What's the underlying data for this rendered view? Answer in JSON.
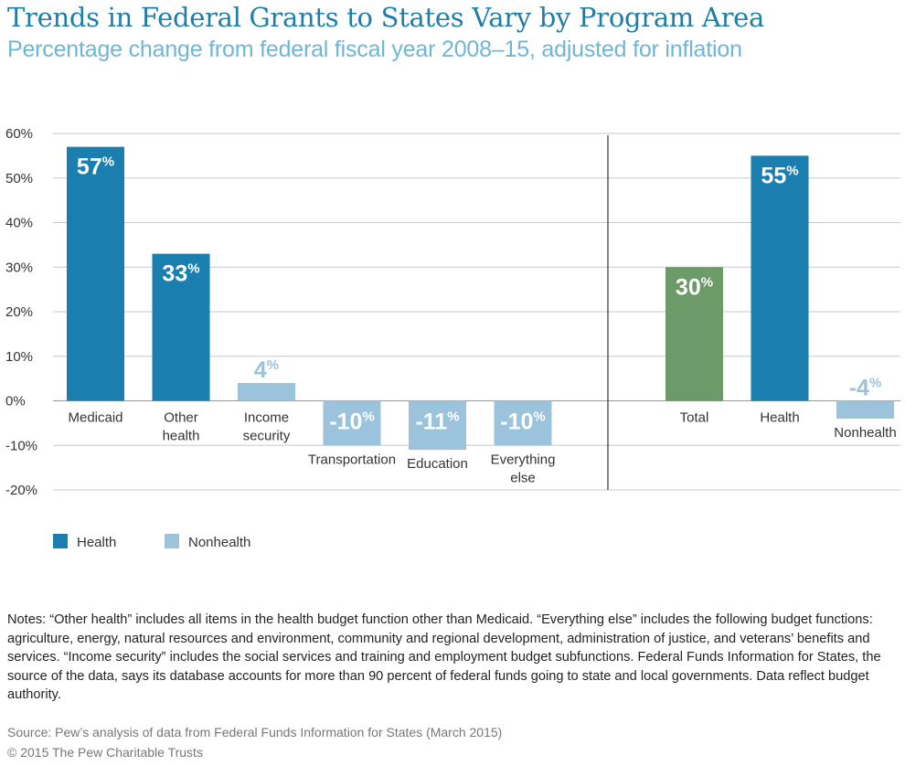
{
  "title": "Trends in Federal Grants to States Vary by Program Area",
  "subtitle": "Percentage change from federal fiscal year 2008–15, adjusted for inflation",
  "legend": {
    "health": "Health",
    "nonhealth": "Nonhealth"
  },
  "colors": {
    "health": "#1a7fae",
    "nonhealth": "#9cc3dc",
    "total": "#6c9a68",
    "grid": "#c8c8c8",
    "axis": "#333333"
  },
  "notes": "Notes: “Other health” includes all items in the health budget function other than Medicaid. “Everything else” includes the following budget functions: agriculture, energy, natural resources and environment, community and regional development, administration of justice, and veterans’ benefits and services. “Income security” includes the social services and training and employment budget subfunctions. Federal Funds Information for States, the source of the data, says its database accounts for more than 90 percent of federal funds going to state and local governments. Data reflect budget authority.",
  "source": "Source: Pew’s analysis of data from Federal Funds Information for States (March 2015)",
  "copyright": "© 2015 The Pew Charitable Trusts",
  "chart_data": {
    "type": "bar",
    "ylim": [
      -20,
      60
    ],
    "yticks": [
      60,
      50,
      40,
      30,
      20,
      10,
      0,
      -10,
      -20
    ],
    "ytick_labels": [
      "60%",
      "50%",
      "40%",
      "30%",
      "20%",
      "10%",
      "0%",
      "-10%",
      "-20%"
    ],
    "grid": true,
    "legend_position": "bottom-left",
    "groups": [
      {
        "name": "",
        "bars": [
          {
            "label": [
              "Medicaid"
            ],
            "value": 57,
            "category": "health"
          },
          {
            "label": [
              "Other",
              "health"
            ],
            "value": 33,
            "category": "health"
          },
          {
            "label": [
              "Income",
              "security"
            ],
            "value": 4,
            "category": "nonhealth"
          },
          {
            "label": [
              "Transportation"
            ],
            "value": -10,
            "category": "nonhealth"
          },
          {
            "label": [
              "Education"
            ],
            "value": -11,
            "category": "nonhealth"
          },
          {
            "label": [
              "Everything",
              "else"
            ],
            "value": -10,
            "category": "nonhealth"
          }
        ]
      },
      {
        "name": "",
        "bars": [
          {
            "label": [
              "Total"
            ],
            "value": 30,
            "category": "total"
          },
          {
            "label": [
              "Health"
            ],
            "value": 55,
            "category": "health"
          },
          {
            "label": [
              "Nonhealth"
            ],
            "value": -4,
            "category": "nonhealth"
          }
        ]
      }
    ]
  }
}
